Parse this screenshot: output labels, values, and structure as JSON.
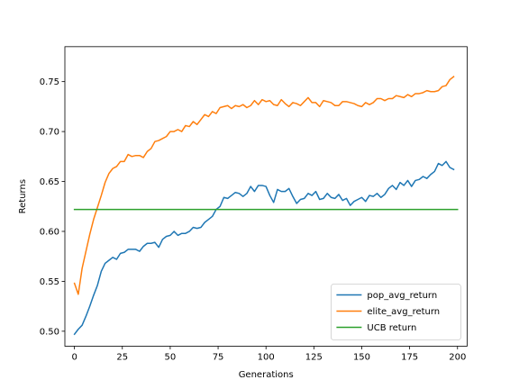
{
  "chart_data": {
    "type": "line",
    "title": "",
    "xlabel": "Generations",
    "ylabel": "Returns",
    "xlim": [
      -5,
      205
    ],
    "ylim": [
      0.485,
      0.785
    ],
    "xticks": [
      0,
      25,
      50,
      75,
      100,
      125,
      150,
      175,
      200
    ],
    "xtick_labels": [
      "0",
      "25",
      "50",
      "75",
      "100",
      "125",
      "150",
      "175",
      "200"
    ],
    "yticks": [
      0.5,
      0.55,
      0.6,
      0.65,
      0.7,
      0.75
    ],
    "ytick_labels": [
      "0.50",
      "0.55",
      "0.60",
      "0.65",
      "0.70",
      "0.75"
    ],
    "grid": false,
    "legend_position": "lower-right",
    "x_start": 0,
    "x_step": 2,
    "series": [
      {
        "name": "pop_avg_return",
        "color": "#1f77b4",
        "values": [
          0.497,
          0.502,
          0.506,
          0.515,
          0.525,
          0.536,
          0.546,
          0.56,
          0.568,
          0.571,
          0.574,
          0.572,
          0.578,
          0.579,
          0.582,
          0.582,
          0.582,
          0.58,
          0.585,
          0.588,
          0.588,
          0.589,
          0.584,
          0.592,
          0.595,
          0.596,
          0.6,
          0.596,
          0.598,
          0.598,
          0.6,
          0.604,
          0.603,
          0.604,
          0.609,
          0.612,
          0.615,
          0.622,
          0.625,
          0.634,
          0.633,
          0.636,
          0.639,
          0.638,
          0.635,
          0.638,
          0.645,
          0.64,
          0.646,
          0.646,
          0.645,
          0.636,
          0.629,
          0.642,
          0.64,
          0.64,
          0.643,
          0.635,
          0.628,
          0.632,
          0.633,
          0.638,
          0.636,
          0.64,
          0.632,
          0.633,
          0.638,
          0.634,
          0.633,
          0.637,
          0.631,
          0.633,
          0.626,
          0.63,
          0.632,
          0.634,
          0.63,
          0.636,
          0.635,
          0.638,
          0.634,
          0.637,
          0.643,
          0.646,
          0.642,
          0.649,
          0.646,
          0.651,
          0.645,
          0.651,
          0.652,
          0.655,
          0.653,
          0.657,
          0.66,
          0.668,
          0.666,
          0.67,
          0.664,
          0.662
        ]
      },
      {
        "name": "elite_avg_return",
        "color": "#ff7f0e",
        "values": [
          0.548,
          0.537,
          0.563,
          0.58,
          0.597,
          0.612,
          0.624,
          0.636,
          0.649,
          0.658,
          0.663,
          0.665,
          0.67,
          0.67,
          0.677,
          0.675,
          0.676,
          0.676,
          0.674,
          0.68,
          0.683,
          0.69,
          0.691,
          0.693,
          0.695,
          0.7,
          0.7,
          0.702,
          0.7,
          0.706,
          0.705,
          0.71,
          0.707,
          0.712,
          0.717,
          0.715,
          0.72,
          0.718,
          0.724,
          0.725,
          0.726,
          0.723,
          0.726,
          0.725,
          0.727,
          0.724,
          0.726,
          0.731,
          0.727,
          0.732,
          0.73,
          0.731,
          0.727,
          0.726,
          0.732,
          0.728,
          0.725,
          0.729,
          0.728,
          0.726,
          0.73,
          0.734,
          0.729,
          0.729,
          0.725,
          0.731,
          0.73,
          0.729,
          0.726,
          0.726,
          0.73,
          0.73,
          0.729,
          0.728,
          0.726,
          0.725,
          0.729,
          0.727,
          0.729,
          0.733,
          0.733,
          0.731,
          0.733,
          0.733,
          0.736,
          0.735,
          0.734,
          0.737,
          0.735,
          0.738,
          0.738,
          0.739,
          0.741,
          0.74,
          0.74,
          0.741,
          0.745,
          0.746,
          0.752,
          0.755
        ]
      },
      {
        "name": "UCB return",
        "color": "#2ca02c",
        "x": [
          0,
          200
        ],
        "values": [
          0.622,
          0.622
        ]
      }
    ]
  }
}
